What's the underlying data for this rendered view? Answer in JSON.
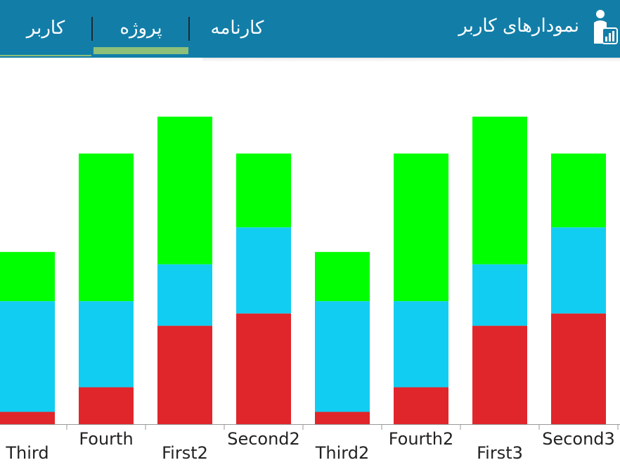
{
  "header": {
    "title": "نمودارهای کاربر",
    "tabs": [
      {
        "label": "کارنامه",
        "active": false
      },
      {
        "label": "پروژه",
        "active": true
      },
      {
        "label": "کاربر",
        "active": false
      }
    ],
    "colors": {
      "bar": "#127ea8",
      "indicator": "#8ec07a",
      "text": "#ffffff"
    }
  },
  "chart_data": {
    "type": "bar",
    "stacked": true,
    "categories": [
      "Third",
      "Fourth",
      "First2",
      "Second2",
      "Third2",
      "Fourth2",
      "First3",
      "Second3"
    ],
    "series": [
      {
        "color": "#e0262b",
        "values": [
          1,
          3,
          8,
          9,
          1,
          3,
          8,
          9
        ]
      },
      {
        "color": "#12cdf2",
        "values": [
          9,
          7,
          5,
          7,
          9,
          7,
          5,
          7
        ]
      },
      {
        "color": "#00ff00",
        "values": [
          4,
          12,
          12,
          6,
          4,
          12,
          12,
          6
        ]
      }
    ],
    "ylim": [
      0,
      28
    ],
    "grid": false,
    "legend": "none"
  }
}
